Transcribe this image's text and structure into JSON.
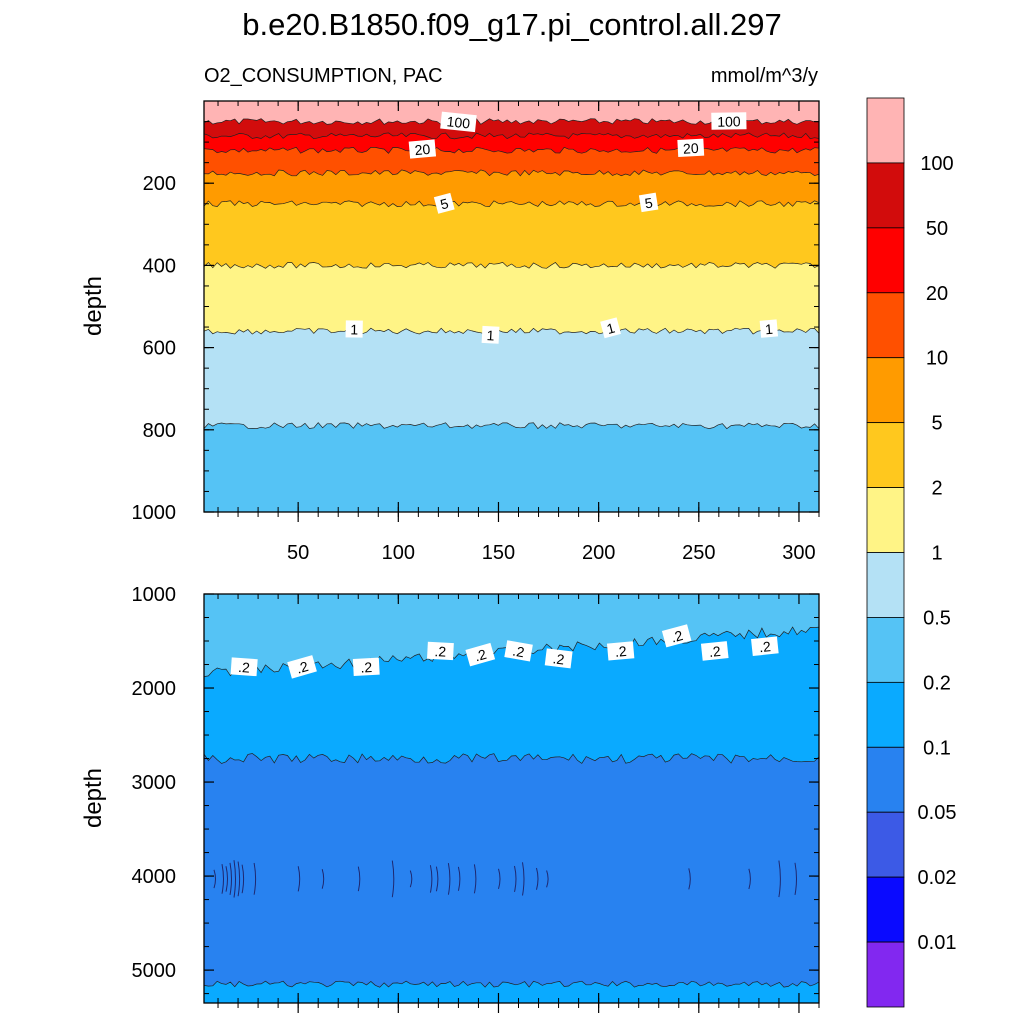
{
  "chart_data": {
    "type": "contour",
    "title": "b.e20.B1850.f09_g17.pi_control.all.297",
    "subtitle_left": "O2_CONSUMPTION, PAC",
    "subtitle_right": "mmol/m^3/y",
    "ylabel": "depth",
    "xlim": [
      3,
      310
    ],
    "x_ticks": [
      "50",
      "100",
      "150",
      "200",
      "250",
      "300"
    ],
    "panels": [
      {
        "name": "upper",
        "ylim": [
          1000,
          0
        ],
        "y_ticks": [
          "200",
          "400",
          "600",
          "800",
          "1000"
        ],
        "layers": [
          {
            "top": 0,
            "bottom": 50,
            "color": "#ffb4b4"
          },
          {
            "top": 50,
            "bottom": 85,
            "color": "#d20c0c"
          },
          {
            "top": 85,
            "bottom": 120,
            "color": "#ff0000"
          },
          {
            "top": 120,
            "bottom": 175,
            "color": "#ff5000"
          },
          {
            "top": 175,
            "bottom": 250,
            "color": "#ff9b00"
          },
          {
            "top": 250,
            "bottom": 400,
            "color": "#ffc81e"
          },
          {
            "top": 400,
            "bottom": 560,
            "color": "#fff486"
          },
          {
            "top": 560,
            "bottom": 790,
            "color": "#b4e1f5"
          },
          {
            "top": 790,
            "bottom": 1000,
            "color": "#55c3f5"
          }
        ],
        "contour_labels": [
          {
            "text": "100",
            "x": 130,
            "y": 52
          },
          {
            "text": "100",
            "x": 265,
            "y": 50
          },
          {
            "text": "20",
            "x": 112,
            "y": 118
          },
          {
            "text": "20",
            "x": 246,
            "y": 115
          },
          {
            "text": "5",
            "x": 123,
            "y": 250
          },
          {
            "text": "5",
            "x": 225,
            "y": 248
          },
          {
            "text": "1",
            "x": 78,
            "y": 556
          },
          {
            "text": "1",
            "x": 146,
            "y": 570
          },
          {
            "text": "1",
            "x": 206,
            "y": 553
          },
          {
            "text": "1",
            "x": 285,
            "y": 555
          }
        ]
      },
      {
        "name": "lower",
        "ylim": [
          5350,
          1000
        ],
        "y_ticks": [
          "1000",
          "2000",
          "3000",
          "4000",
          "5000"
        ],
        "layers": [
          {
            "top": 1000,
            "bottom": 1700,
            "color": "#55c3f5"
          },
          {
            "top": 1700,
            "bottom": 2750,
            "color": "#0aaaff"
          },
          {
            "top": 2750,
            "bottom": 5150,
            "color": "#2882f0"
          },
          {
            "top": 5150,
            "bottom": 5350,
            "color": "#0aaaff"
          }
        ],
        "contour_labels": [
          {
            "text": ".2",
            "x": 23,
            "y": 1780
          },
          {
            "text": ".2",
            "x": 52,
            "y": 1780
          },
          {
            "text": ".2",
            "x": 84,
            "y": 1780
          },
          {
            "text": ".2",
            "x": 121,
            "y": 1610
          },
          {
            "text": ".2",
            "x": 141,
            "y": 1650
          },
          {
            "text": ".2",
            "x": 160,
            "y": 1610
          },
          {
            "text": ".2",
            "x": 180,
            "y": 1690
          },
          {
            "text": ".2",
            "x": 211,
            "y": 1610
          },
          {
            "text": ".2",
            "x": 239,
            "y": 1450
          },
          {
            "text": ".2",
            "x": 258,
            "y": 1610
          },
          {
            "text": ".2",
            "x": 283,
            "y": 1560
          }
        ]
      }
    ],
    "colorbar": {
      "colors": [
        "#ffb4b4",
        "#d20c0c",
        "#ff0000",
        "#ff5000",
        "#ff9b00",
        "#ffc81e",
        "#fff486",
        "#b4e1f5",
        "#55c3f5",
        "#0aaaff",
        "#2882f0",
        "#3c5ae6",
        "#0a0aff",
        "#8228f0"
      ],
      "labels": [
        "100",
        "50",
        "20",
        "10",
        "5",
        "2",
        "1",
        "0.5",
        "0.2",
        "0.1",
        "0.05",
        "0.02",
        "0.01"
      ]
    }
  }
}
